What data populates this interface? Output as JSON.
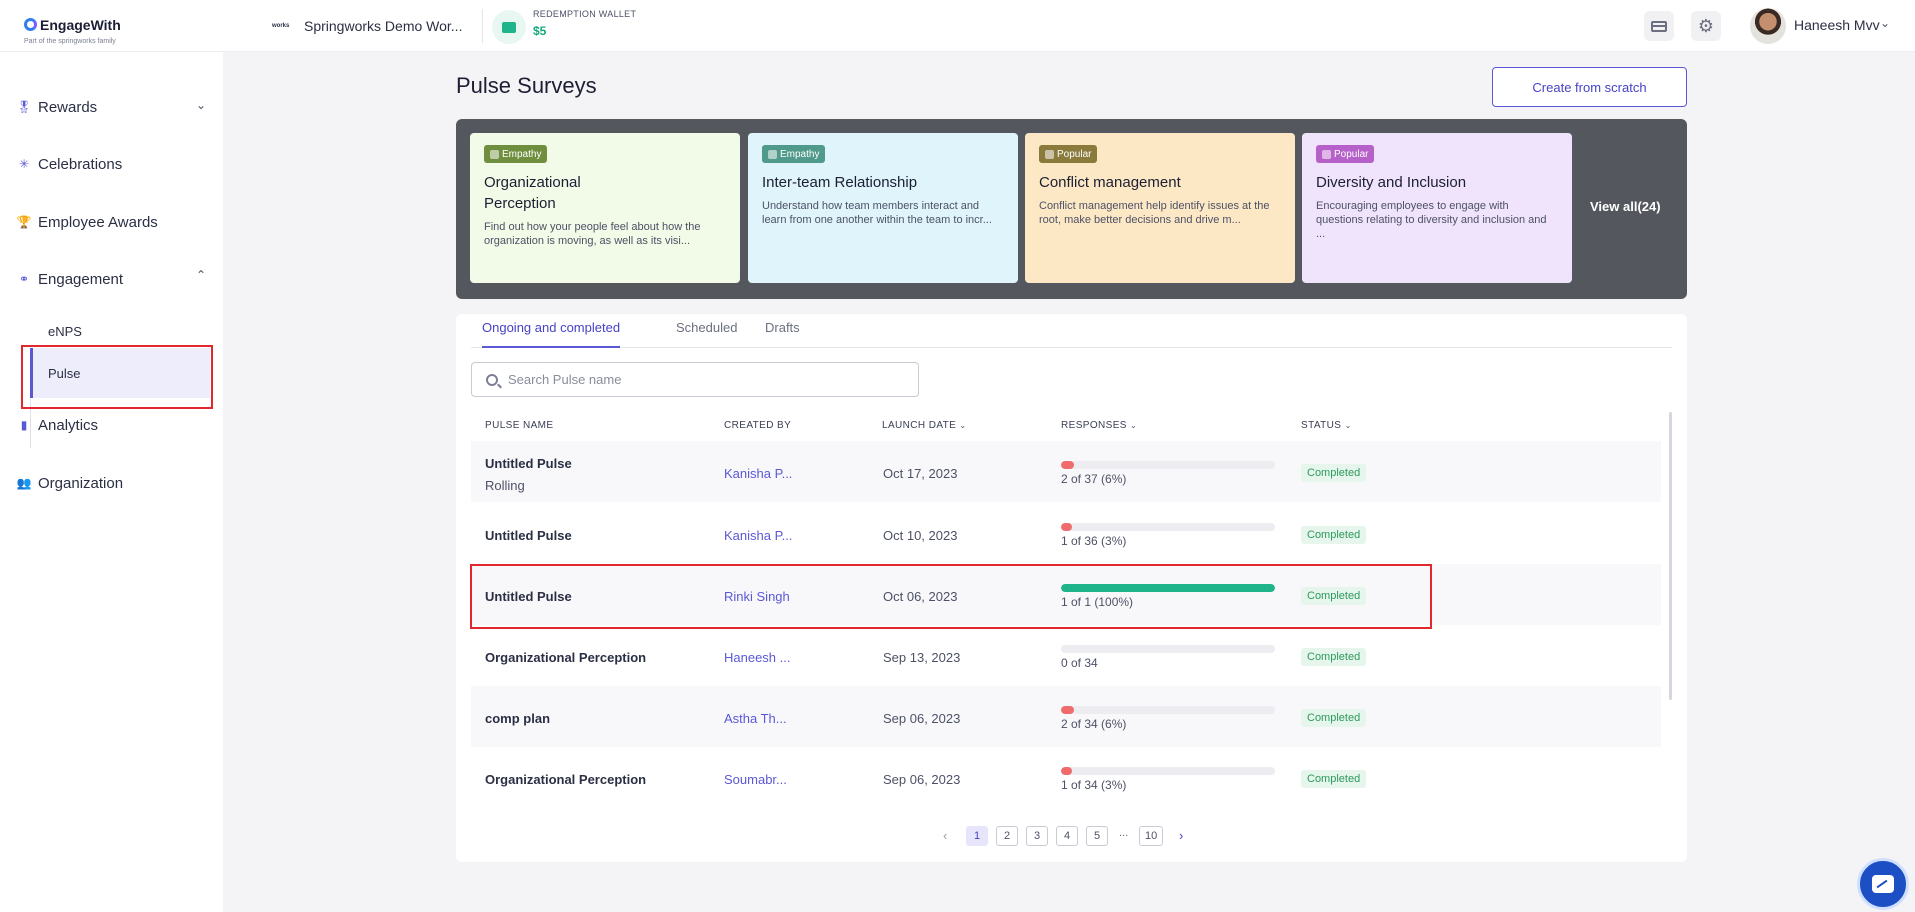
{
  "brand": {
    "name": "EngageWith",
    "tagline": "Part of the springworks family"
  },
  "org": {
    "logo_text": "works",
    "name": "Springworks Demo Wor..."
  },
  "wallet": {
    "label": "REDEMPTION WALLET",
    "amount": "$5"
  },
  "header_icons": [
    "card-icon",
    "gear-icon"
  ],
  "user": {
    "name": "Haneesh Mvv"
  },
  "sidebar": {
    "items": [
      {
        "label": "Rewards",
        "icon": "medal-icon"
      },
      {
        "label": "Celebrations",
        "icon": "party-icon"
      },
      {
        "label": "Employee Awards",
        "icon": "trophy-icon"
      },
      {
        "label": "Engagement",
        "icon": "engagement-icon"
      },
      {
        "label": "Analytics",
        "icon": "analytics-icon"
      },
      {
        "label": "Organization",
        "icon": "organization-icon"
      }
    ],
    "engagement_sub": [
      {
        "label": "eNPS"
      },
      {
        "label": "Pulse"
      }
    ]
  },
  "page": {
    "title": "Pulse Surveys",
    "create_button": "Create from scratch"
  },
  "templates": {
    "cards": [
      {
        "badge": "Empathy",
        "title": "Organizational Perception",
        "desc": "Find out how your people feel about how the organization is moving, as well as its visi...",
        "bg": "#f2fbe7",
        "badge_bg": "#6f8f3e"
      },
      {
        "badge": "Empathy",
        "title": "Inter-team Relationship",
        "desc": "Understand how team members interact and learn from one another within the team to incr...",
        "bg": "#dff5fb",
        "badge_bg": "#4f9a8a"
      },
      {
        "badge": "Popular",
        "title": "Conflict management",
        "desc": "Conflict management help identify issues at the root, make better decisions and drive m...",
        "bg": "#fde8c6",
        "badge_bg": "#8a7a3c"
      },
      {
        "badge": "Popular",
        "title": "Diversity and Inclusion",
        "desc": "Encouraging employees to engage with questions relating to diversity and inclusion and ...",
        "bg": "#f0e3fc",
        "badge_bg": "#b660c9"
      }
    ],
    "view_all": "View all(24)"
  },
  "tabs": [
    "Ongoing and completed",
    "Scheduled",
    "Drafts"
  ],
  "search": {
    "placeholder": "Search Pulse name"
  },
  "table": {
    "headers": {
      "name": "PULSE NAME",
      "created_by": "CREATED BY",
      "launch_date": "LAUNCH DATE",
      "responses": "RESPONSES",
      "status": "STATUS"
    },
    "rows": [
      {
        "name": "Untitled Pulse",
        "sub": "Rolling",
        "created_by": "Kanisha P...",
        "date": "Oct 17, 2023",
        "responses": "2 of 37 (6%)",
        "progress": 0.06,
        "bar_color": "#f06b6b",
        "status": "Completed"
      },
      {
        "name": "Untitled Pulse",
        "sub": "",
        "created_by": "Kanisha P...",
        "date": "Oct 10, 2023",
        "responses": "1 of 36 (3%)",
        "progress": 0.03,
        "bar_color": "#f06b6b",
        "status": "Completed"
      },
      {
        "name": "Untitled Pulse",
        "sub": "",
        "created_by": "Rinki Singh",
        "date": "Oct 06, 2023",
        "responses": "1 of 1 (100%)",
        "progress": 1.0,
        "bar_color": "#1fb48a",
        "status": "Completed"
      },
      {
        "name": "Organizational Perception",
        "sub": "",
        "created_by": "Haneesh ...",
        "date": "Sep 13, 2023",
        "responses": "0 of 34",
        "progress": 0.0,
        "bar_color": "#f06b6b",
        "status": "Completed"
      },
      {
        "name": "comp plan",
        "sub": "",
        "created_by": "Astha Th...",
        "date": "Sep 06, 2023",
        "responses": "2 of 34 (6%)",
        "progress": 0.06,
        "bar_color": "#f06b6b",
        "status": "Completed"
      },
      {
        "name": "Organizational Perception",
        "sub": "",
        "created_by": "Soumabr...",
        "date": "Sep 06, 2023",
        "responses": "1 of 34 (3%)",
        "progress": 0.03,
        "bar_color": "#f06b6b",
        "status": "Completed"
      }
    ]
  },
  "pagination": {
    "pages": [
      "1",
      "2",
      "3",
      "4",
      "5"
    ],
    "ellipsis": "...",
    "last": "10",
    "current": "1"
  }
}
